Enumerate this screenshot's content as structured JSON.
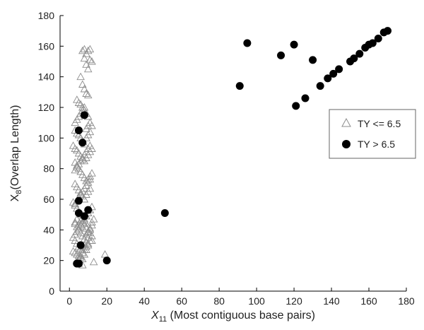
{
  "chart_data": {
    "type": "scatter",
    "xlabel": {
      "main": "X",
      "sub": "11",
      "rest": " (Most contiguous base pairs)"
    },
    "ylabel": {
      "main": "X",
      "sub": "8",
      "rest": "(Overlap Length)"
    },
    "xlim": [
      -5,
      180
    ],
    "ylim": [
      0,
      180
    ],
    "xticks": [
      "0",
      "20",
      "40",
      "60",
      "80",
      "100",
      "120",
      "140",
      "160",
      "180"
    ],
    "yticks": [
      "0",
      "20",
      "40",
      "60",
      "80",
      "100",
      "120",
      "140",
      "160",
      "180"
    ],
    "grid": false,
    "legend_position": "right",
    "series": [
      {
        "name": "TY <= 6.5",
        "marker": "open-triangle",
        "color": "#8c8c8c",
        "x": [
          7,
          8,
          9,
          10,
          11,
          12,
          8,
          9,
          10,
          11,
          6,
          7,
          8,
          9,
          10,
          4,
          5,
          6,
          7,
          8,
          9,
          10,
          11,
          12,
          3,
          4,
          5,
          6,
          7,
          8,
          9,
          10,
          11,
          2,
          3,
          4,
          5,
          6,
          7,
          8,
          9,
          10,
          11,
          12,
          3,
          4,
          5,
          6,
          7,
          8,
          9,
          10,
          11,
          12,
          3,
          4,
          5,
          6,
          7,
          8,
          9,
          10,
          11,
          2,
          3,
          4,
          5,
          6,
          7,
          8,
          9,
          10,
          11,
          12,
          3,
          4,
          5,
          6,
          7,
          8,
          9,
          10,
          11,
          12,
          3,
          4,
          5,
          6,
          7,
          8,
          9,
          10,
          11,
          2,
          3,
          4,
          5,
          6,
          7,
          8,
          9,
          10,
          11,
          12,
          3,
          4,
          5,
          6,
          7,
          8,
          9,
          10,
          11,
          3,
          4,
          5,
          6,
          7,
          8,
          9,
          10,
          11,
          12,
          13,
          3,
          4,
          5,
          6,
          7,
          8,
          9,
          10,
          11,
          2,
          3,
          4,
          5,
          6,
          7,
          8,
          9,
          10,
          11,
          3,
          4,
          5,
          6,
          7,
          8,
          9,
          10,
          4,
          5,
          6,
          7,
          8,
          9,
          10,
          12,
          19,
          5,
          7,
          13
        ],
        "y": [
          157,
          158,
          155,
          157,
          158,
          150,
          152,
          148,
          145,
          151,
          140,
          135,
          132,
          129,
          128,
          125,
          123,
          122,
          120,
          118,
          116,
          114,
          110,
          108,
          105,
          103,
          102,
          100,
          98,
          96,
          100,
          102,
          104,
          95,
          93,
          92,
          90,
          88,
          86,
          85,
          87,
          89,
          91,
          93,
          84,
          82,
          80,
          78,
          76,
          74,
          72,
          73,
          75,
          77,
          70,
          68,
          66,
          64,
          62,
          60,
          63,
          65,
          67,
          58,
          56,
          54,
          52,
          50,
          48,
          46,
          49,
          51,
          53,
          55,
          44,
          42,
          40,
          38,
          36,
          34,
          37,
          39,
          41,
          43,
          33,
          31,
          29,
          28,
          27,
          30,
          32,
          35,
          38,
          26,
          25,
          24,
          23,
          22,
          21,
          24,
          27,
          30,
          33,
          36,
          45,
          47,
          43,
          46,
          42,
          44,
          41,
          38,
          40,
          57,
          59,
          61,
          63,
          65,
          67,
          69,
          71,
          73,
          45,
          47,
          79,
          81,
          83,
          85,
          87,
          89,
          91,
          93,
          95,
          35,
          37,
          39,
          41,
          43,
          45,
          47,
          49,
          51,
          53,
          110,
          112,
          114,
          116,
          118,
          120,
          106,
          108,
          19,
          21,
          23,
          25,
          27,
          29,
          31,
          33,
          24,
          18,
          17,
          19
        ]
      },
      {
        "name": "TY > 6.5",
        "marker": "filled-circle",
        "color": "#000000",
        "x": [
          4,
          5,
          6,
          8,
          5,
          5,
          5,
          8,
          10,
          7,
          5,
          4,
          20,
          51,
          91,
          95,
          113,
          120,
          121,
          126,
          130,
          134,
          138,
          141,
          144,
          150,
          152,
          155,
          158,
          160,
          162,
          165,
          168,
          170
        ],
        "y": [
          18,
          18,
          30,
          49,
          51,
          59,
          105,
          115,
          53,
          97,
          18,
          18,
          20,
          51,
          134,
          162,
          154,
          161,
          121,
          126,
          151,
          134,
          139,
          142,
          145,
          150,
          152,
          155,
          159,
          161,
          162,
          165,
          169,
          170
        ]
      }
    ]
  }
}
